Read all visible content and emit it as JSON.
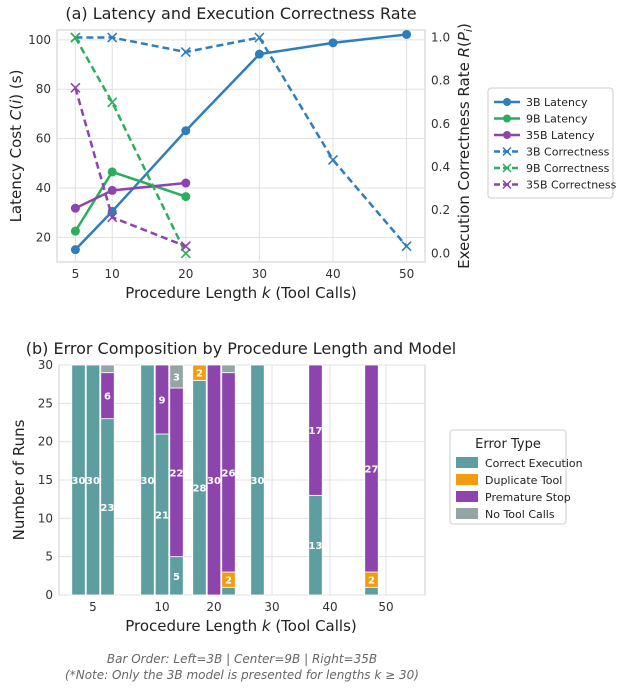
{
  "chart_data": [
    {
      "type": "line",
      "title": "(a) Latency and Execution Correctness Rate",
      "xlabel": "Procedure Length k (Tool Calls)",
      "ylabel": "Latency Cost C(i) (s)",
      "y2label": "Execution Correctness Rate R(Pi)",
      "x_ticks": [
        "5",
        "10",
        "20",
        "30",
        "40",
        "50"
      ],
      "y_ticks": [
        "20",
        "40",
        "60",
        "80",
        "100"
      ],
      "y2_ticks": [
        "0.0",
        "0.2",
        "0.4",
        "0.6",
        "0.8",
        "1.0"
      ],
      "ylim": [
        10,
        104
      ],
      "y2lim": [
        -0.04,
        1.035
      ],
      "xlim": [
        2.5,
        52.5
      ],
      "grid": true,
      "legend_position": "right-outside",
      "series": [
        {
          "name": "3B Latency",
          "axis": "left",
          "style": "solid",
          "marker": "circle",
          "color": "#2e7ebc",
          "x": [
            5,
            10,
            20,
            30,
            40,
            50
          ],
          "values": [
            15.0,
            30.5,
            63.2,
            94.2,
            98.8,
            102.2
          ]
        },
        {
          "name": "9B Latency",
          "axis": "left",
          "style": "solid",
          "marker": "circle",
          "color": "#2aaf5e",
          "x": [
            5,
            10,
            20
          ],
          "values": [
            22.5,
            46.5,
            36.5
          ]
        },
        {
          "name": "35B Latency",
          "axis": "left",
          "style": "solid",
          "marker": "circle",
          "color": "#8e44ad",
          "x": [
            5,
            10,
            20
          ],
          "values": [
            31.8,
            39.0,
            42.0
          ]
        },
        {
          "name": "3B Correctness",
          "axis": "right",
          "style": "dashed",
          "marker": "x",
          "color": "#2e7ebc",
          "x": [
            5,
            10,
            20,
            30,
            40,
            50
          ],
          "values": [
            1.0,
            1.0,
            0.933,
            1.0,
            0.433,
            0.033
          ]
        },
        {
          "name": "9B Correctness",
          "axis": "right",
          "style": "dashed",
          "marker": "x",
          "color": "#2aaf5e",
          "x": [
            5,
            10,
            20
          ],
          "values": [
            1.0,
            0.7,
            0.0
          ]
        },
        {
          "name": "35B Correctness",
          "axis": "right",
          "style": "dashed",
          "marker": "x",
          "color": "#8e44ad",
          "x": [
            5,
            10,
            20
          ],
          "values": [
            0.767,
            0.167,
            0.033
          ]
        }
      ]
    },
    {
      "type": "bar",
      "stacked": true,
      "title": "(b) Error Composition by Procedure Length and Model",
      "xlabel": "Procedure Length k (Tool Calls)",
      "ylabel": "Number of Runs",
      "legend_title": "Error Type",
      "legend_position": "right-outside",
      "x_ticks": [
        "5",
        "10",
        "20",
        "30",
        "40",
        "50"
      ],
      "y_ticks": [
        "0",
        "5",
        "10",
        "15",
        "20",
        "25",
        "30"
      ],
      "ylim": [
        0,
        30
      ],
      "grid": true,
      "error_types": [
        {
          "name": "Correct Execution",
          "color": "#5f9ea0"
        },
        {
          "name": "Duplicate Tool",
          "color": "#f39c12"
        },
        {
          "name": "Premature Stop",
          "color": "#8e44ad"
        },
        {
          "name": "No Tool Calls",
          "color": "#95a5a6"
        }
      ],
      "groups": [
        {
          "k": "5",
          "bars": [
            {
              "model": "3B",
              "values": [
                30,
                0,
                0,
                0
              ],
              "labels": [
                "30",
                "",
                "",
                ""
              ]
            },
            {
              "model": "9B",
              "values": [
                30,
                0,
                0,
                0
              ],
              "labels": [
                "30",
                "",
                "",
                ""
              ]
            },
            {
              "model": "35B",
              "values": [
                23,
                0,
                6,
                1
              ],
              "labels": [
                "23",
                "",
                "6",
                ""
              ]
            }
          ]
        },
        {
          "k": "10",
          "bars": [
            {
              "model": "3B",
              "values": [
                30,
                0,
                0,
                0
              ],
              "labels": [
                "30",
                "",
                "",
                ""
              ]
            },
            {
              "model": "9B",
              "values": [
                21,
                0,
                9,
                0
              ],
              "labels": [
                "21",
                "",
                "9",
                ""
              ]
            },
            {
              "model": "35B",
              "values": [
                5,
                0,
                22,
                3
              ],
              "labels": [
                "5",
                "",
                "22",
                "3"
              ]
            }
          ]
        },
        {
          "k": "20",
          "bars": [
            {
              "model": "3B",
              "values": [
                28,
                2,
                0,
                0
              ],
              "labels": [
                "28",
                "2",
                "",
                ""
              ]
            },
            {
              "model": "9B",
              "values": [
                0,
                0,
                30,
                0
              ],
              "labels": [
                "",
                "",
                "30",
                ""
              ]
            },
            {
              "model": "35B",
              "values": [
                1,
                2,
                26,
                1
              ],
              "labels": [
                "",
                "2",
                "26",
                ""
              ]
            }
          ]
        },
        {
          "k": "30",
          "bars": [
            {
              "model": "3B",
              "values": [
                30,
                0,
                0,
                0
              ],
              "labels": [
                "30",
                "",
                "",
                ""
              ]
            }
          ]
        },
        {
          "k": "40",
          "bars": [
            {
              "model": "3B",
              "values": [
                13,
                0,
                17,
                0
              ],
              "labels": [
                "13",
                "",
                "17",
                ""
              ]
            }
          ]
        },
        {
          "k": "50",
          "bars": [
            {
              "model": "3B",
              "values": [
                1,
                2,
                27,
                0
              ],
              "labels": [
                "",
                "2",
                "27",
                ""
              ]
            }
          ]
        }
      ]
    }
  ],
  "notes": {
    "bar_order": "Bar Order: Left=3B | Center=9B | Right=35B",
    "note": "(*Note: Only the 3B model is presented for lengths k ≥ 30)"
  }
}
